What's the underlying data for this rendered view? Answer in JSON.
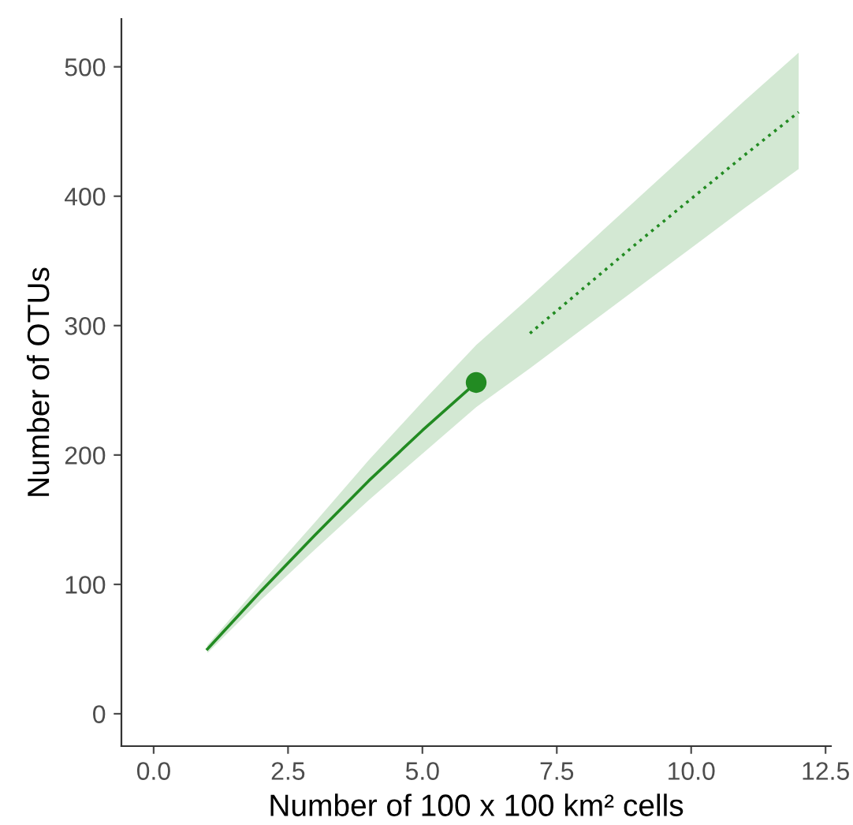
{
  "chart_data": {
    "type": "line",
    "xlabel": "Number of 100 x 100 km² cells",
    "ylabel": "Number of OTUs",
    "xlim": [
      -0.6,
      12.6
    ],
    "ylim": [
      -25,
      537
    ],
    "xticks": [
      {
        "value": 0,
        "label": "0.0"
      },
      2.5,
      {
        "value": 5,
        "label": "5.0"
      },
      7.5,
      {
        "value": 10,
        "label": "10.0"
      },
      12.5
    ],
    "yticks": [
      0,
      100,
      200,
      300,
      400,
      500
    ],
    "grid": false,
    "legend": false,
    "series": [
      {
        "color": "#228b22",
        "line_style": "solid",
        "x": [
          1,
          2,
          3,
          4,
          5,
          6
        ],
        "values": [
          50,
          95,
          138,
          180,
          219,
          256
        ],
        "lower": [
          47,
          88,
          127,
          165,
          201,
          237
        ],
        "upper": [
          53,
          101,
          148,
          196,
          241,
          285
        ]
      },
      {
        "color": "#228b22",
        "line_style": "dotted",
        "x": [
          6,
          7,
          8,
          9,
          10,
          11,
          12
        ],
        "values": [
          null,
          294,
          329,
          364,
          398,
          432,
          465
        ],
        "lower": [
          237,
          267,
          298,
          329,
          360,
          391,
          421
        ],
        "upper": [
          285,
          322,
          360,
          398,
          436,
          474,
          511
        ]
      },
      {
        "type": "scatter",
        "color": "#228b22",
        "marker": "circle",
        "x": [
          6
        ],
        "values": [
          256
        ]
      }
    ]
  }
}
